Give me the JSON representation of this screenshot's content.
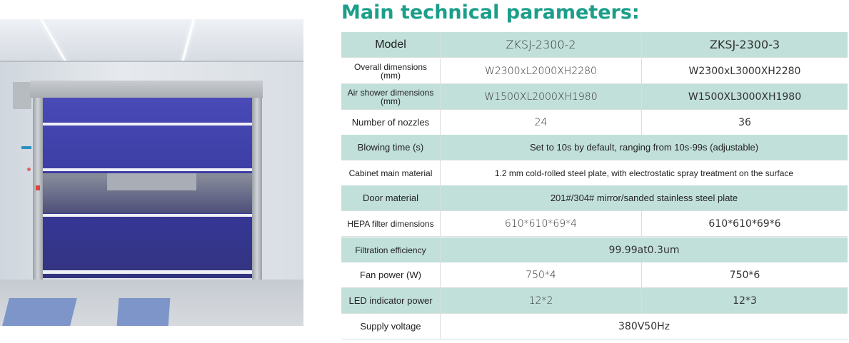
{
  "title": "Main technical parameters:",
  "colors": {
    "title": "#1b9e8a",
    "row_teal": "#c2e0da",
    "row_white": "#ffffff",
    "door_blue": "#3a3aa0"
  },
  "image": {
    "subject": "high-speed roller door air shower"
  },
  "table": {
    "rows": [
      {
        "label": "Model",
        "values": [
          "ZKSJ-2300-2",
          "ZKSJ-2300-3"
        ],
        "shade": "teal"
      },
      {
        "label": "Overall dimensions\n(mm)",
        "values": [
          "W2300xL2000XH2280",
          "W2300xL3000XH2280"
        ],
        "shade": "white"
      },
      {
        "label": "Air shower dimensions\n(mm)",
        "values": [
          "W1500XL2000XH1980",
          "W1500XL3000XH1980"
        ],
        "shade": "teal"
      },
      {
        "label": "Number of nozzles",
        "values": [
          "24",
          "36"
        ],
        "shade": "white"
      },
      {
        "label": "Blowing time (s)",
        "values": [
          "Set to 10s by default, ranging from 10s-99s (adjustable)"
        ],
        "shade": "teal"
      },
      {
        "label": "Cabinet main material",
        "values": [
          "1.2 mm cold-rolled steel plate, with electrostatic spray treatment on the surface"
        ],
        "shade": "white"
      },
      {
        "label": "Door material",
        "values": [
          "201#/304# mirror/sanded stainless steel plate"
        ],
        "shade": "teal"
      },
      {
        "label": "HEPA filter dimensions",
        "values": [
          "610*610*69*4",
          "610*610*69*6"
        ],
        "shade": "white"
      },
      {
        "label": "Filtration efficiency",
        "values": [
          "99.99at0.3um"
        ],
        "shade": "teal"
      },
      {
        "label": "Fan power (W)",
        "values": [
          "750*4",
          "750*6"
        ],
        "shade": "white"
      },
      {
        "label": "LED indicator power",
        "values": [
          "12*2",
          "12*3"
        ],
        "shade": "teal"
      },
      {
        "label": "Supply voltage",
        "values": [
          "380V50Hz"
        ],
        "shade": "white"
      }
    ]
  }
}
